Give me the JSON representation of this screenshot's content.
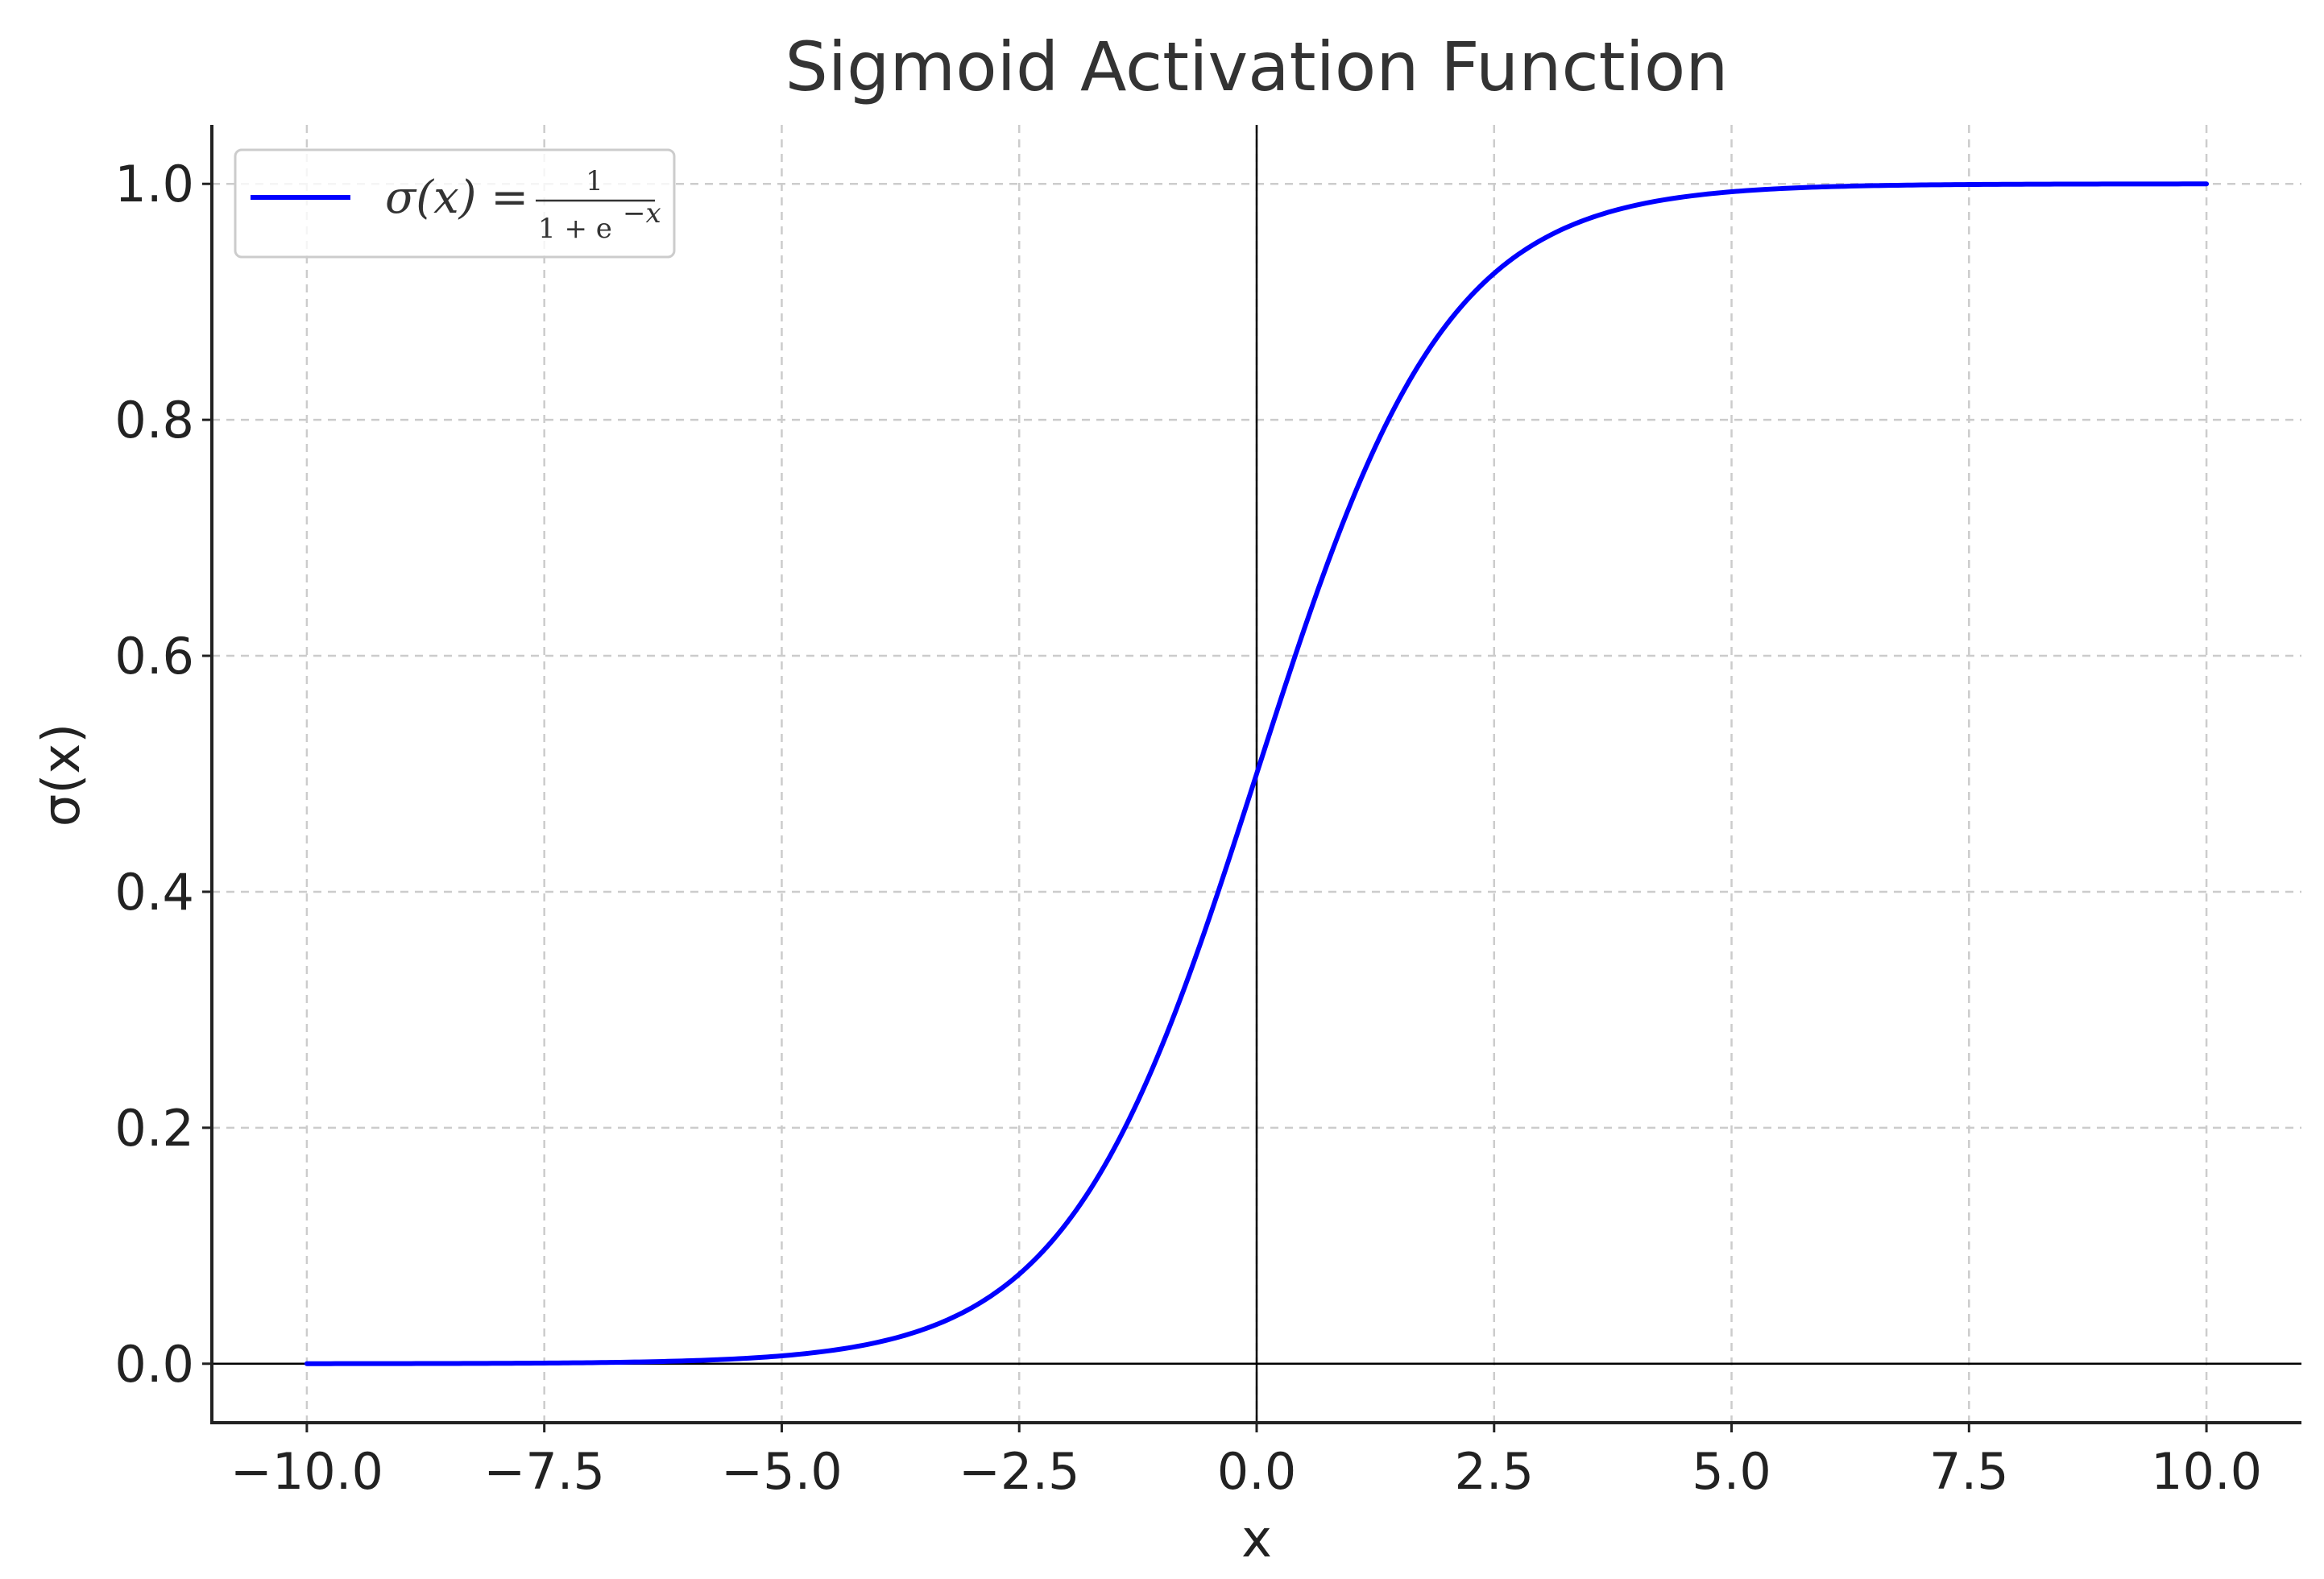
{
  "chart_data": {
    "type": "line",
    "title": "Sigmoid Activation Function",
    "xlabel": "x",
    "ylabel": "σ(x)",
    "xlim": [
      -11,
      11
    ],
    "ylim": [
      -0.05,
      1.05
    ],
    "xticks": [
      "−10.0",
      "−7.5",
      "−5.0",
      "−2.5",
      "0.0",
      "2.5",
      "5.0",
      "7.5",
      "10.0"
    ],
    "xtick_values": [
      -10,
      -7.5,
      -5,
      -2.5,
      0,
      2.5,
      5,
      7.5,
      10
    ],
    "yticks": [
      "0.0",
      "0.2",
      "0.4",
      "0.6",
      "0.8",
      "1.0"
    ],
    "ytick_values": [
      0,
      0.2,
      0.4,
      0.6,
      0.8,
      1.0
    ],
    "grid": true,
    "grid_style": "dashed",
    "reference_lines": {
      "x": 0,
      "y": 0
    },
    "legend_position": "top-left",
    "series": [
      {
        "legend": {
          "lhs": "σ(x) =",
          "numerator": "1",
          "denominator": "1 + e",
          "exponent": "−x"
        },
        "color": "#0000ff",
        "x": [
          -10,
          -9,
          -8,
          -7,
          -6,
          -5,
          -4,
          -3,
          -2.5,
          -2,
          -1.5,
          -1,
          -0.5,
          0,
          0.5,
          1,
          1.5,
          2,
          2.5,
          3,
          4,
          5,
          6,
          7,
          8,
          9,
          10
        ],
        "y": [
          4.54e-05,
          0.0001234,
          0.0003354,
          0.0009111,
          0.0024726,
          0.0066929,
          0.0179862,
          0.0474259,
          0.0758582,
          0.1192029,
          0.1824255,
          0.2689414,
          0.3775407,
          0.5,
          0.6224593,
          0.7310586,
          0.8175745,
          0.8807971,
          0.9241418,
          0.9525741,
          0.9820138,
          0.9933071,
          0.9975274,
          0.9990889,
          0.9996646,
          0.9998766,
          0.9999546
        ]
      }
    ]
  }
}
